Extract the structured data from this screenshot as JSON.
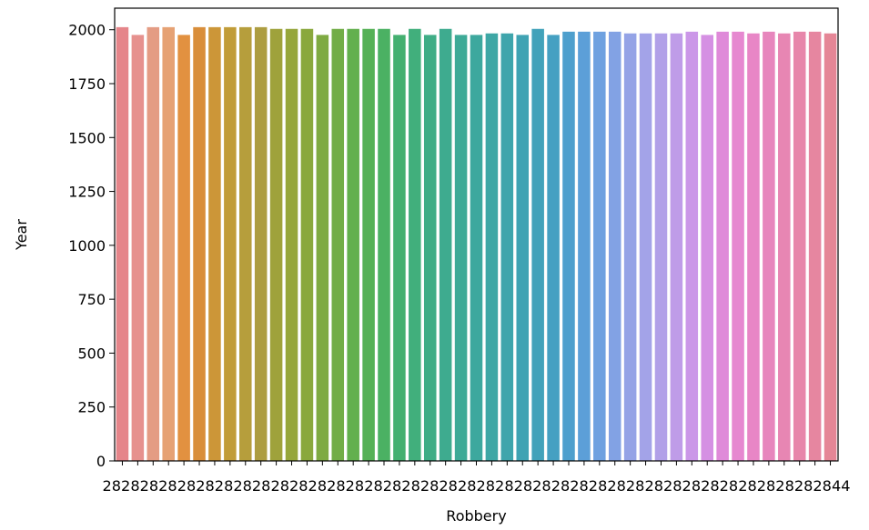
{
  "chart_data": {
    "type": "bar",
    "xlabel": "Robbery",
    "ylabel": "Year",
    "ylim": [
      0,
      2100
    ],
    "yticks": [
      0,
      250,
      500,
      750,
      1000,
      1250,
      1500,
      1750,
      2000
    ],
    "grid": false,
    "legend": "none",
    "x_tick_text": "28282828282828282828282828282828282828282828282828282828282828282828282828282844",
    "values": [
      2012,
      1976,
      2012,
      2012,
      1976,
      2012,
      2012,
      2012,
      2012,
      2012,
      2004,
      2004,
      2004,
      1976,
      2004,
      2004,
      2004,
      2004,
      1976,
      2004,
      1976,
      2004,
      1976,
      1976,
      1983,
      1983,
      1976,
      2004,
      1976,
      1991,
      1991,
      1991,
      1991,
      1983,
      1983,
      1983,
      1983,
      1991,
      1976,
      1991,
      1991,
      1983,
      1991,
      1983,
      1991,
      1991,
      1983
    ],
    "colors": [
      "#e5858a",
      "#e6918e",
      "#e49c84",
      "#e6a274",
      "#e29140",
      "#d98e3a",
      "#cc9638",
      "#c19c38",
      "#b69e3c",
      "#ad9d40",
      "#9fa23b",
      "#96a63b",
      "#8aa83d",
      "#7faa42",
      "#72ad47",
      "#63b04e",
      "#55b156",
      "#4bb163",
      "#44b070",
      "#41af7c",
      "#3fad86",
      "#3eab8f",
      "#3daa97",
      "#3da89e",
      "#3ea7a5",
      "#3fa5ac",
      "#40a3b3",
      "#42a2ba",
      "#45a0c2",
      "#4e9fcd",
      "#5c9fd8",
      "#6ea1e0",
      "#82a2e4",
      "#94a3e6",
      "#a3a3e8",
      "#b1a0e8",
      "#bf9ce8",
      "#cb97e8",
      "#d590e3",
      "#df8ad9",
      "#e688d0",
      "#e886c6",
      "#e786bd",
      "#e786b3",
      "#e786aa",
      "#e686a0",
      "#e58696"
    ]
  }
}
